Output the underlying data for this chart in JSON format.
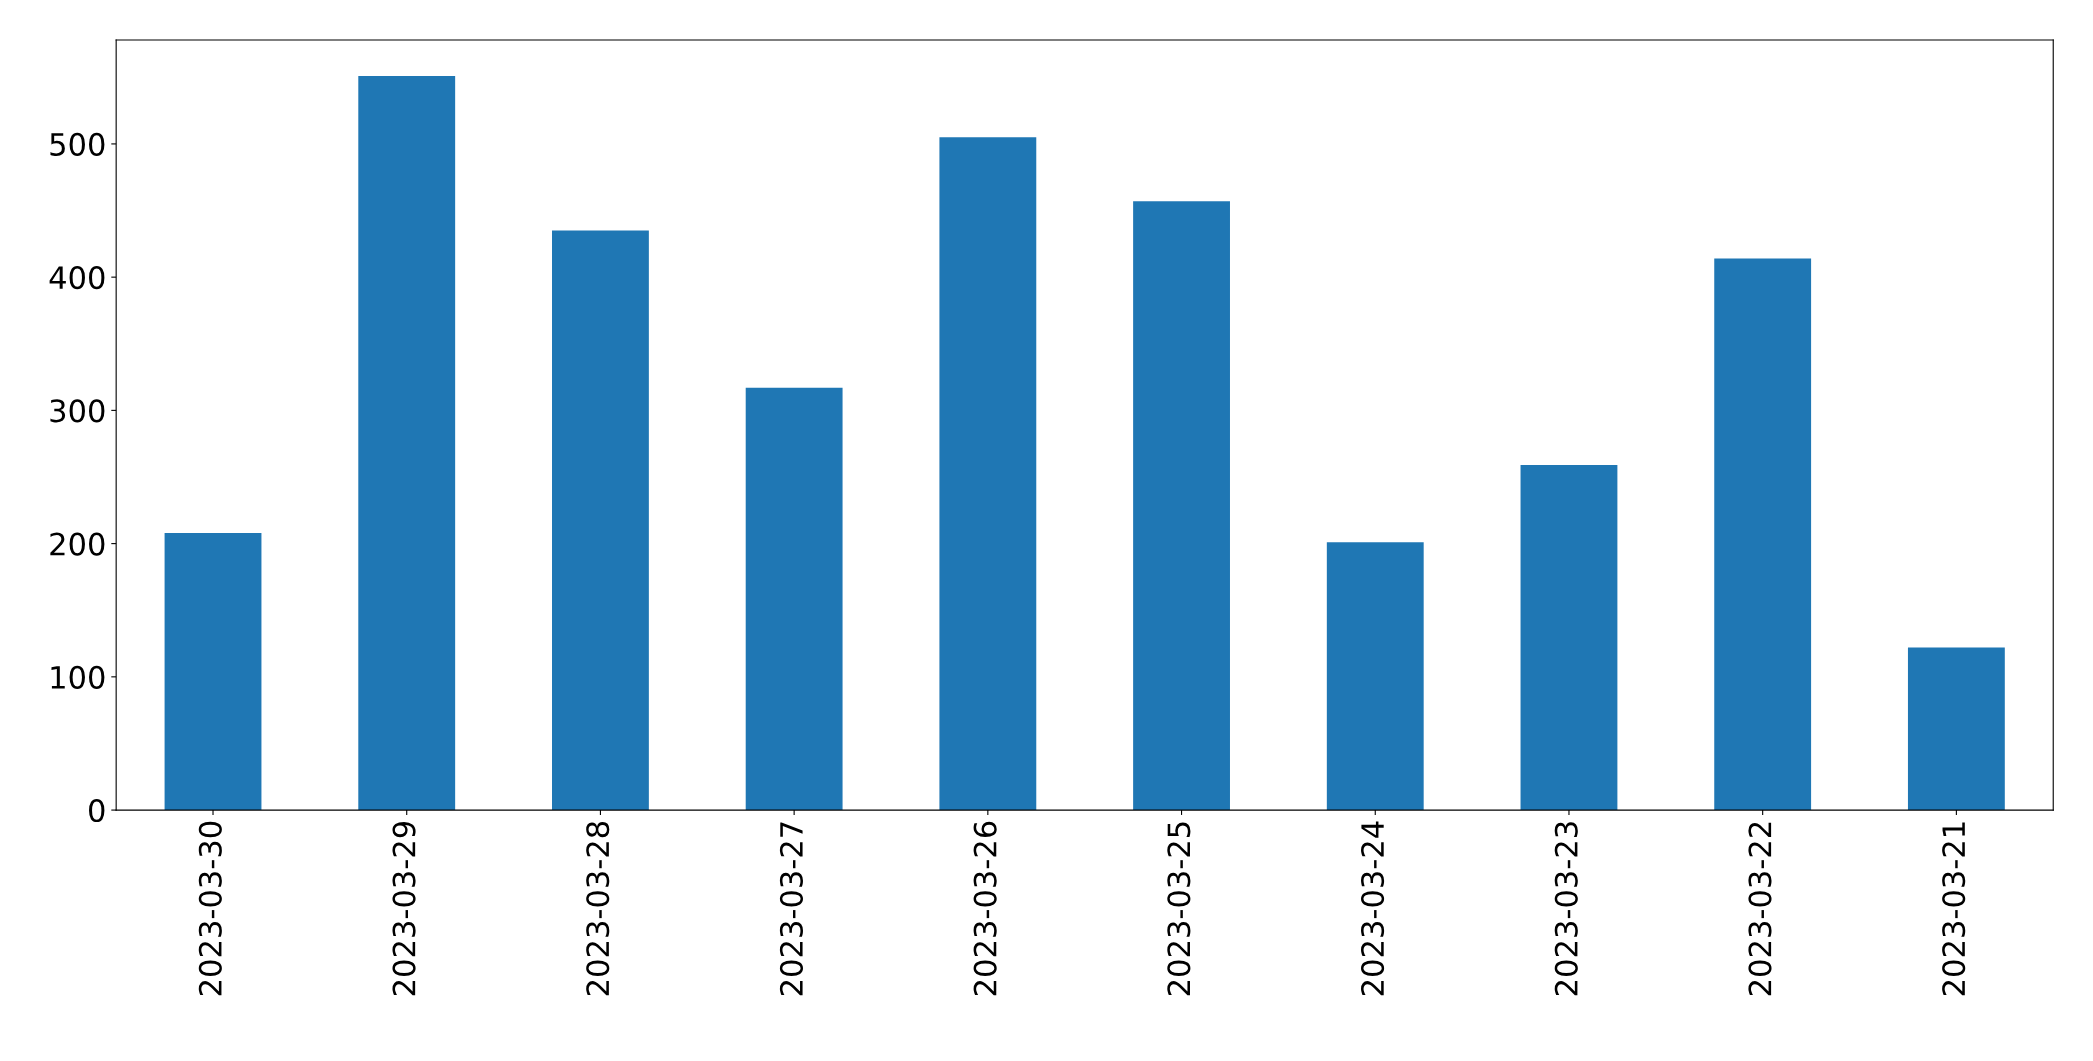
{
  "chart_data": {
    "type": "bar",
    "categories": [
      "2023-03-30",
      "2023-03-29",
      "2023-03-28",
      "2023-03-27",
      "2023-03-26",
      "2023-03-25",
      "2023-03-24",
      "2023-03-23",
      "2023-03-22",
      "2023-03-21"
    ],
    "values": [
      208,
      551,
      435,
      317,
      505,
      457,
      201,
      259,
      414,
      122
    ],
    "color": "#1f77b4",
    "ylim": [
      0,
      578
    ],
    "yticks": [
      0,
      100,
      200,
      300,
      400,
      500
    ],
    "grid": false,
    "legend": false
  }
}
